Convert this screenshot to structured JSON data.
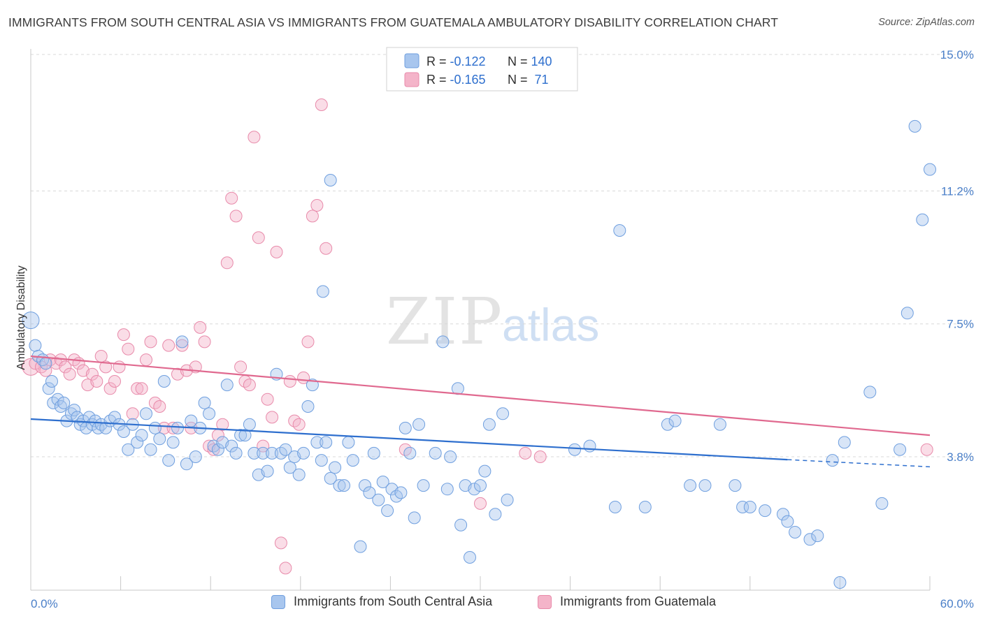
{
  "title": "IMMIGRANTS FROM SOUTH CENTRAL ASIA VS IMMIGRANTS FROM GUATEMALA AMBULATORY DISABILITY CORRELATION CHART",
  "source": "Source: ZipAtlas.com",
  "watermark": {
    "zip": "ZIP",
    "atlas": "atlas"
  },
  "colors": {
    "blue": "#2e6fce",
    "blue_fill": "#a8c6ee",
    "pink": "#e0698f",
    "pink_fill": "#f4b4c9",
    "grid": "#d8d8d8",
    "axis_text": "#4a7fc8"
  },
  "legend": {
    "rows": [
      {
        "r_label": "R = ",
        "r_value": "-0.122",
        "n_label": "N = ",
        "n_value": "140",
        "color": "#a8c6ee"
      },
      {
        "r_label": "R = ",
        "r_value": "-0.165",
        "n_label": "N = ",
        "n_value": " 71",
        "color": "#f4b4c9"
      }
    ]
  },
  "chart_data": {
    "type": "scatter",
    "title": "IMMIGRANTS FROM SOUTH CENTRAL ASIA VS IMMIGRANTS FROM GUATEMALA AMBULATORY DISABILITY CORRELATION CHART",
    "xlabel": "",
    "ylabel": "Ambulatory Disability",
    "xlim": [
      0,
      60
    ],
    "ylim": [
      0,
      15.5
    ],
    "x_tick_labels": [
      "0.0%",
      "60.0%"
    ],
    "y_ticks": [
      3.8,
      7.5,
      11.2,
      15.0
    ],
    "y_tick_labels": [
      "3.8%",
      "7.5%",
      "11.2%",
      "15.0%"
    ],
    "grid": "horizontal dashed",
    "legend_position": "top-center",
    "series": [
      {
        "name": "Immigrants from South Central Asia",
        "color": "#2e6fce",
        "trend": {
          "x0": 0,
          "y0": 4.85,
          "x1": 50.5,
          "y1": 3.72,
          "x_dash_end": 60,
          "y_dash_end": 3.52
        },
        "points": [
          [
            0.0,
            7.6
          ],
          [
            0.3,
            6.9
          ],
          [
            0.5,
            6.6
          ],
          [
            0.8,
            6.5
          ],
          [
            1.0,
            6.4
          ],
          [
            1.2,
            5.7
          ],
          [
            1.4,
            5.9
          ],
          [
            1.5,
            5.3
          ],
          [
            1.8,
            5.4
          ],
          [
            2.0,
            5.2
          ],
          [
            2.2,
            5.3
          ],
          [
            2.4,
            4.8
          ],
          [
            2.7,
            5.0
          ],
          [
            2.9,
            5.1
          ],
          [
            3.1,
            4.9
          ],
          [
            3.3,
            4.7
          ],
          [
            3.5,
            4.8
          ],
          [
            3.7,
            4.6
          ],
          [
            3.9,
            4.9
          ],
          [
            4.1,
            4.7
          ],
          [
            4.3,
            4.8
          ],
          [
            4.5,
            4.6
          ],
          [
            4.7,
            4.7
          ],
          [
            5.0,
            4.6
          ],
          [
            5.3,
            4.8
          ],
          [
            5.6,
            4.9
          ],
          [
            5.9,
            4.7
          ],
          [
            6.2,
            4.5
          ],
          [
            6.5,
            4.0
          ],
          [
            6.8,
            4.7
          ],
          [
            7.1,
            4.2
          ],
          [
            7.4,
            4.4
          ],
          [
            7.7,
            5.0
          ],
          [
            8.0,
            4.0
          ],
          [
            8.3,
            4.6
          ],
          [
            8.6,
            4.3
          ],
          [
            8.9,
            5.9
          ],
          [
            9.2,
            3.7
          ],
          [
            9.5,
            4.2
          ],
          [
            9.8,
            4.6
          ],
          [
            10.1,
            7.0
          ],
          [
            10.4,
            3.6
          ],
          [
            10.7,
            4.8
          ],
          [
            11.0,
            3.8
          ],
          [
            11.3,
            4.6
          ],
          [
            11.6,
            5.3
          ],
          [
            11.9,
            5.0
          ],
          [
            12.2,
            4.1
          ],
          [
            12.5,
            4.0
          ],
          [
            12.8,
            4.2
          ],
          [
            13.1,
            5.8
          ],
          [
            13.4,
            4.1
          ],
          [
            13.7,
            3.9
          ],
          [
            14.0,
            4.4
          ],
          [
            14.3,
            4.4
          ],
          [
            14.6,
            4.7
          ],
          [
            14.9,
            3.9
          ],
          [
            15.2,
            3.3
          ],
          [
            15.5,
            3.9
          ],
          [
            15.8,
            3.4
          ],
          [
            16.1,
            3.9
          ],
          [
            16.4,
            6.1
          ],
          [
            16.7,
            3.9
          ],
          [
            17.0,
            4.0
          ],
          [
            17.3,
            3.5
          ],
          [
            17.6,
            3.8
          ],
          [
            17.9,
            3.3
          ],
          [
            18.2,
            3.9
          ],
          [
            18.5,
            5.2
          ],
          [
            18.8,
            5.8
          ],
          [
            19.1,
            4.2
          ],
          [
            19.4,
            3.7
          ],
          [
            19.7,
            4.2
          ],
          [
            20.0,
            3.2
          ],
          [
            20.3,
            3.5
          ],
          [
            20.6,
            3.0
          ],
          [
            20.9,
            3.0
          ],
          [
            21.2,
            4.2
          ],
          [
            21.5,
            3.7
          ],
          [
            22.0,
            1.3
          ],
          [
            22.3,
            3.0
          ],
          [
            22.6,
            2.8
          ],
          [
            22.9,
            3.9
          ],
          [
            23.2,
            2.6
          ],
          [
            23.5,
            3.1
          ],
          [
            23.8,
            2.3
          ],
          [
            24.1,
            2.9
          ],
          [
            24.4,
            2.7
          ],
          [
            24.7,
            2.8
          ],
          [
            25.0,
            4.6
          ],
          [
            25.3,
            3.9
          ],
          [
            25.6,
            2.1
          ],
          [
            25.9,
            4.7
          ],
          [
            26.2,
            3.0
          ],
          [
            27.0,
            3.9
          ],
          [
            27.5,
            7.0
          ],
          [
            27.8,
            2.9
          ],
          [
            28.0,
            3.8
          ],
          [
            28.5,
            5.7
          ],
          [
            28.7,
            1.9
          ],
          [
            29.0,
            3.0
          ],
          [
            29.3,
            1.0
          ],
          [
            29.6,
            2.9
          ],
          [
            30.0,
            3.0
          ],
          [
            30.3,
            3.4
          ],
          [
            30.6,
            4.7
          ],
          [
            31.0,
            2.2
          ],
          [
            31.5,
            5.0
          ],
          [
            31.8,
            2.6
          ],
          [
            36.3,
            4.0
          ],
          [
            37.3,
            4.1
          ],
          [
            39.0,
            2.4
          ],
          [
            39.3,
            10.1
          ],
          [
            41.0,
            2.4
          ],
          [
            42.5,
            4.7
          ],
          [
            43.0,
            4.8
          ],
          [
            44.0,
            3.0
          ],
          [
            45.0,
            3.0
          ],
          [
            46.0,
            4.7
          ],
          [
            47.0,
            3.0
          ],
          [
            47.5,
            2.4
          ],
          [
            48.0,
            2.4
          ],
          [
            49.0,
            2.3
          ],
          [
            50.2,
            2.2
          ],
          [
            50.5,
            2.0
          ],
          [
            51.0,
            1.7
          ],
          [
            52.0,
            1.5
          ],
          [
            52.5,
            1.6
          ],
          [
            53.5,
            3.7
          ],
          [
            54.0,
            0.3
          ],
          [
            54.3,
            4.2
          ],
          [
            56.0,
            5.6
          ],
          [
            56.8,
            2.5
          ],
          [
            58.0,
            4.0
          ],
          [
            58.5,
            7.8
          ],
          [
            59.0,
            13.0
          ],
          [
            60.0,
            11.8
          ],
          [
            59.5,
            10.4
          ],
          [
            20.0,
            11.5
          ],
          [
            19.5,
            8.4
          ]
        ]
      },
      {
        "name": "Immigrants from Guatemala",
        "color": "#e0698f",
        "trend": {
          "x0": 0,
          "y0": 6.6,
          "x1": 60,
          "y1": 4.4
        },
        "points": [
          [
            0.0,
            6.3
          ],
          [
            0.3,
            6.4
          ],
          [
            0.7,
            6.3
          ],
          [
            1.0,
            6.2
          ],
          [
            1.3,
            6.5
          ],
          [
            1.7,
            6.4
          ],
          [
            2.0,
            6.5
          ],
          [
            2.3,
            6.3
          ],
          [
            2.6,
            6.1
          ],
          [
            2.9,
            6.5
          ],
          [
            3.2,
            6.4
          ],
          [
            3.5,
            6.2
          ],
          [
            3.8,
            5.8
          ],
          [
            4.1,
            6.1
          ],
          [
            4.4,
            5.9
          ],
          [
            4.7,
            6.6
          ],
          [
            5.0,
            6.3
          ],
          [
            5.3,
            5.7
          ],
          [
            5.6,
            5.9
          ],
          [
            5.9,
            6.3
          ],
          [
            6.2,
            7.2
          ],
          [
            6.5,
            6.8
          ],
          [
            6.8,
            5.0
          ],
          [
            7.1,
            5.7
          ],
          [
            7.4,
            5.7
          ],
          [
            7.7,
            6.5
          ],
          [
            8.0,
            7.0
          ],
          [
            8.3,
            5.3
          ],
          [
            8.6,
            5.2
          ],
          [
            8.9,
            4.6
          ],
          [
            9.2,
            6.9
          ],
          [
            9.5,
            4.6
          ],
          [
            9.8,
            6.1
          ],
          [
            10.1,
            6.9
          ],
          [
            10.4,
            6.2
          ],
          [
            10.7,
            4.6
          ],
          [
            11.0,
            6.3
          ],
          [
            11.3,
            7.4
          ],
          [
            11.6,
            7.0
          ],
          [
            11.9,
            4.1
          ],
          [
            12.2,
            4.0
          ],
          [
            12.5,
            4.4
          ],
          [
            12.8,
            4.7
          ],
          [
            13.1,
            9.2
          ],
          [
            13.4,
            11.0
          ],
          [
            13.7,
            10.5
          ],
          [
            14.0,
            6.3
          ],
          [
            14.3,
            5.9
          ],
          [
            14.6,
            5.8
          ],
          [
            14.9,
            12.7
          ],
          [
            15.2,
            9.9
          ],
          [
            15.5,
            4.1
          ],
          [
            15.8,
            5.4
          ],
          [
            16.1,
            4.9
          ],
          [
            16.4,
            9.5
          ],
          [
            16.7,
            1.4
          ],
          [
            17.0,
            0.7
          ],
          [
            17.3,
            5.9
          ],
          [
            17.6,
            4.8
          ],
          [
            17.9,
            4.7
          ],
          [
            18.2,
            6.0
          ],
          [
            18.5,
            7.0
          ],
          [
            18.8,
            10.5
          ],
          [
            19.1,
            10.8
          ],
          [
            19.4,
            13.6
          ],
          [
            19.7,
            9.6
          ],
          [
            25.0,
            4.0
          ],
          [
            30.0,
            2.5
          ],
          [
            33.0,
            3.9
          ],
          [
            34.0,
            3.8
          ],
          [
            59.8,
            4.0
          ]
        ]
      }
    ]
  },
  "bottom_legend": {
    "items": [
      {
        "label": "Immigrants from South Central Asia"
      },
      {
        "label": "Immigrants from Guatemala"
      }
    ]
  }
}
